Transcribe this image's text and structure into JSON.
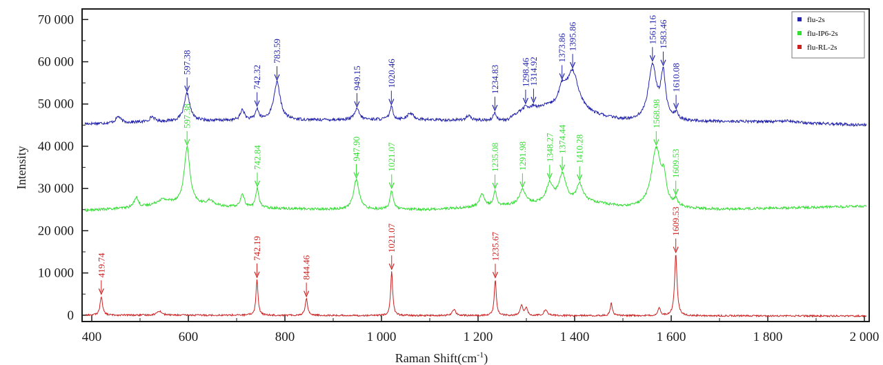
{
  "chart_data": {
    "type": "line",
    "title": "",
    "xlabel": "Raman Shift(cm",
    "xlabel_sup": "-1",
    "xlabel_close": ")",
    "ylabel": "Intensity",
    "xlim": [
      380,
      2010
    ],
    "ylim": [
      -1500,
      72500
    ],
    "x_ticks": [
      {
        "value": 400,
        "label": "400"
      },
      {
        "value": 600,
        "label": "600"
      },
      {
        "value": 800,
        "label": "800"
      },
      {
        "value": 1000,
        "label": "1 000"
      },
      {
        "value": 1200,
        "label": "1 200"
      },
      {
        "value": 1400,
        "label": "1 400"
      },
      {
        "value": 1600,
        "label": "1 600"
      },
      {
        "value": 1800,
        "label": "1 800"
      },
      {
        "value": 2000,
        "label": "2 000"
      }
    ],
    "y_ticks": [
      {
        "value": 0,
        "label": "0"
      },
      {
        "value": 10000,
        "label": "10 000"
      },
      {
        "value": 20000,
        "label": "20 000"
      },
      {
        "value": 30000,
        "label": "30 000"
      },
      {
        "value": 40000,
        "label": "40 000"
      },
      {
        "value": 50000,
        "label": "50 000"
      },
      {
        "value": 60000,
        "label": "60 000"
      },
      {
        "value": 70000,
        "label": "70 000"
      }
    ],
    "grid": false,
    "legend_position": "top-right",
    "series": [
      {
        "name": "flu-2s",
        "color": "#2222aa",
        "baseline": [
          [
            385,
            45300
          ],
          [
            600,
            46000
          ],
          [
            1000,
            46300
          ],
          [
            1260,
            46000
          ],
          [
            1285,
            48000
          ],
          [
            1340,
            49000
          ],
          [
            1500,
            46000
          ],
          [
            1620,
            45800
          ],
          [
            1800,
            45800
          ],
          [
            2005,
            45000
          ]
        ],
        "peaks": [
          {
            "x": 455,
            "h": 1500,
            "w": 6
          },
          {
            "x": 525,
            "h": 1200,
            "w": 6
          },
          {
            "x": 597.38,
            "h": 6500,
            "w": 7
          },
          {
            "x": 712,
            "h": 2500,
            "w": 5
          },
          {
            "x": 742.32,
            "h": 2500,
            "w": 4
          },
          {
            "x": 783.59,
            "h": 9000,
            "w": 8
          },
          {
            "x": 949.15,
            "h": 2500,
            "w": 6
          },
          {
            "x": 1020.46,
            "h": 3000,
            "w": 4
          },
          {
            "x": 1060,
            "h": 1500,
            "w": 8
          },
          {
            "x": 1180,
            "h": 1000,
            "w": 6
          },
          {
            "x": 1234.83,
            "h": 1800,
            "w": 4
          },
          {
            "x": 1298.46,
            "h": 1000,
            "w": 5
          },
          {
            "x": 1314.92,
            "h": 800,
            "w": 5
          },
          {
            "x": 1373.86,
            "h": 4000,
            "w": 9
          },
          {
            "x": 1395.86,
            "h": 9500,
            "w": 15
          },
          {
            "x": 1561.16,
            "h": 13000,
            "w": 10
          },
          {
            "x": 1583.46,
            "h": 10500,
            "w": 6
          },
          {
            "x": 1610.08,
            "h": 1500,
            "w": 5
          },
          {
            "x": 1840,
            "h": 500,
            "w": 12
          }
        ],
        "noise": 350,
        "labels": [
          {
            "x": 597.38,
            "text": "597.38"
          },
          {
            "x": 742.32,
            "text": "742.32"
          },
          {
            "x": 783.59,
            "text": "783.59"
          },
          {
            "x": 949.15,
            "text": "949.15"
          },
          {
            "x": 1020.46,
            "text": "1020.46"
          },
          {
            "x": 1234.83,
            "text": "1234.83"
          },
          {
            "x": 1298.46,
            "text": "1298.46"
          },
          {
            "x": 1314.92,
            "text": "1314.92"
          },
          {
            "x": 1373.86,
            "text": "1373.86"
          },
          {
            "x": 1395.86,
            "text": "1395.86"
          },
          {
            "x": 1561.16,
            "text": "1561.16"
          },
          {
            "x": 1583.46,
            "text": "1583.46"
          },
          {
            "x": 1610.08,
            "text": "1610.08"
          }
        ]
      },
      {
        "name": "flu-IP6-2s",
        "color": "#33dd33",
        "baseline": [
          [
            385,
            24800
          ],
          [
            500,
            25500
          ],
          [
            560,
            26500
          ],
          [
            700,
            25500
          ],
          [
            900,
            25000
          ],
          [
            1100,
            25000
          ],
          [
            1280,
            26000
          ],
          [
            1420,
            27000
          ],
          [
            1500,
            25500
          ],
          [
            1700,
            25000
          ],
          [
            2005,
            25800
          ]
        ],
        "peaks": [
          {
            "x": 492,
            "h": 2500,
            "w": 5
          },
          {
            "x": 545,
            "h": 1000,
            "w": 12
          },
          {
            "x": 597.38,
            "h": 13500,
            "w": 7
          },
          {
            "x": 645,
            "h": 1200,
            "w": 8
          },
          {
            "x": 712,
            "h": 3000,
            "w": 5
          },
          {
            "x": 742.84,
            "h": 4500,
            "w": 4
          },
          {
            "x": 947.9,
            "h": 7000,
            "w": 7
          },
          {
            "x": 1021.07,
            "h": 4500,
            "w": 4
          },
          {
            "x": 1208,
            "h": 3000,
            "w": 6
          },
          {
            "x": 1235.08,
            "h": 3500,
            "w": 4
          },
          {
            "x": 1291.98,
            "h": 3500,
            "w": 8
          },
          {
            "x": 1348.27,
            "h": 4500,
            "w": 8
          },
          {
            "x": 1374.44,
            "h": 6500,
            "w": 9
          },
          {
            "x": 1410.28,
            "h": 4000,
            "w": 7
          },
          {
            "x": 1568.98,
            "h": 14000,
            "w": 12
          },
          {
            "x": 1585,
            "h": 5000,
            "w": 5
          },
          {
            "x": 1609.53,
            "h": 1500,
            "w": 4
          }
        ],
        "noise": 300,
        "labels": [
          {
            "x": 597.38,
            "text": "597.38"
          },
          {
            "x": 742.84,
            "text": "742.84"
          },
          {
            "x": 947.9,
            "text": "947.90"
          },
          {
            "x": 1021.07,
            "text": "1021.07"
          },
          {
            "x": 1235.08,
            "text": "1235.08"
          },
          {
            "x": 1291.98,
            "text": "1291.98"
          },
          {
            "x": 1348.27,
            "text": "1348.27"
          },
          {
            "x": 1374.44,
            "text": "1374.44"
          },
          {
            "x": 1410.28,
            "text": "1410.28"
          },
          {
            "x": 1568.98,
            "text": "1568.98"
          },
          {
            "x": 1609.53,
            "text": "1609.53"
          }
        ]
      },
      {
        "name": "flu-RL-2s",
        "color": "#cc1f1f",
        "baseline": [
          [
            385,
            0
          ],
          [
            700,
            0
          ],
          [
            1000,
            -100
          ],
          [
            1500,
            -100
          ],
          [
            2005,
            -200
          ]
        ],
        "peaks": [
          {
            "x": 419.74,
            "h": 4500,
            "w": 3
          },
          {
            "x": 540,
            "h": 1000,
            "w": 6
          },
          {
            "x": 742.19,
            "h": 8500,
            "w": 2.5
          },
          {
            "x": 844.46,
            "h": 4000,
            "w": 3
          },
          {
            "x": 1021.07,
            "h": 10500,
            "w": 2.5
          },
          {
            "x": 1150,
            "h": 1500,
            "w": 4
          },
          {
            "x": 1235.67,
            "h": 8500,
            "w": 2.5
          },
          {
            "x": 1290,
            "h": 2500,
            "w": 3
          },
          {
            "x": 1300,
            "h": 1800,
            "w": 3
          },
          {
            "x": 1340,
            "h": 1500,
            "w": 4
          },
          {
            "x": 1476,
            "h": 3000,
            "w": 2.5
          },
          {
            "x": 1575,
            "h": 2000,
            "w": 3
          },
          {
            "x": 1609.53,
            "h": 14500,
            "w": 3
          }
        ],
        "noise": 200,
        "labels": [
          {
            "x": 419.74,
            "text": "419.74"
          },
          {
            "x": 742.19,
            "text": "742.19"
          },
          {
            "x": 844.46,
            "text": "844.46"
          },
          {
            "x": 1021.07,
            "text": "1021.07"
          },
          {
            "x": 1235.67,
            "text": "1235.67"
          },
          {
            "x": 1609.53,
            "text": "1609.53"
          }
        ]
      }
    ]
  }
}
